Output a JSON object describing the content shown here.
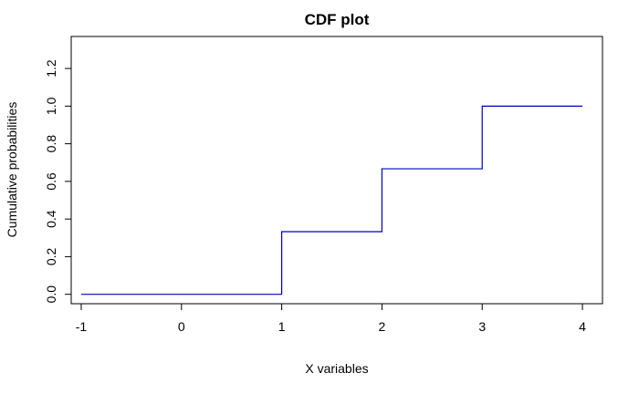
{
  "chart_data": {
    "type": "line",
    "title": "CDF plot",
    "xlabel": "X variables",
    "ylabel": "Cumulative probabilities",
    "xlim": [
      -1.1,
      4.2
    ],
    "ylim": [
      -0.05,
      1.37
    ],
    "x_ticks": [
      -1,
      0,
      1,
      2,
      3,
      4
    ],
    "x_tick_labels": [
      "-1",
      "0",
      "1",
      "2",
      "3",
      "4"
    ],
    "y_ticks": [
      0.0,
      0.2,
      0.4,
      0.6,
      0.8,
      1.0,
      1.2
    ],
    "y_tick_labels": [
      "0.0",
      "0.2",
      "0.4",
      "0.6",
      "0.8",
      "1.0",
      "1.2"
    ],
    "grid": false,
    "legend": "none",
    "series": [
      {
        "color": "#0000cc",
        "step": "post",
        "x": [
          -1,
          1,
          2,
          3,
          4
        ],
        "y": [
          0.0,
          0.333,
          0.667,
          1.0,
          1.0
        ]
      }
    ]
  }
}
